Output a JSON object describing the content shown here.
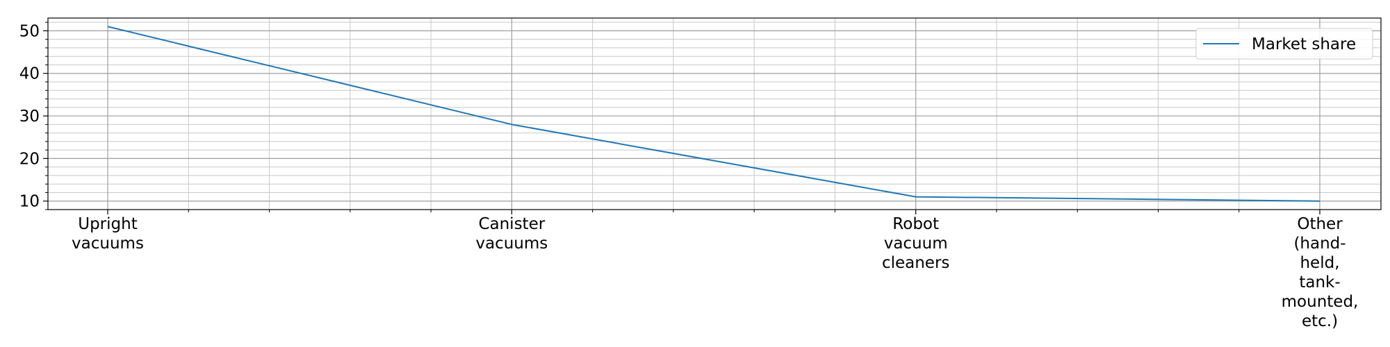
{
  "chart_data": {
    "type": "line",
    "categories": [
      [
        "Upright",
        "vacuums"
      ],
      [
        "Canister",
        "vacuums"
      ],
      [
        "Robot",
        "vacuum",
        "cleaners"
      ],
      [
        "Other",
        "(hand-",
        "held,",
        "tank-",
        "mounted,",
        "etc.)"
      ]
    ],
    "series": [
      {
        "name": "Market share",
        "values": [
          51,
          28,
          11,
          10
        ],
        "color": "#1f77b4"
      }
    ],
    "ylim": [
      8,
      53
    ],
    "yticks": [
      10,
      20,
      30,
      40,
      50
    ],
    "yminor_step": 2,
    "x_minor_per_interval": 5,
    "grid": "major and minor",
    "legend_position": "top-right",
    "xlabel": "",
    "ylabel": "",
    "title": ""
  }
}
